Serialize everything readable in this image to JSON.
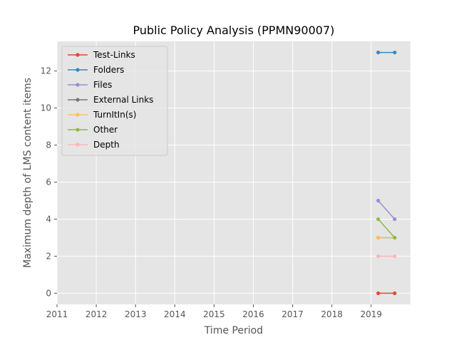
{
  "chart_data": {
    "type": "line",
    "title": "Public Policy Analysis (PPMN90007)",
    "xlabel": "Time Period",
    "ylabel": "Maximum depth of LMS content items",
    "xlim": [
      2011,
      2020.0
    ],
    "ylim": [
      -0.6,
      13.6
    ],
    "xticks": [
      "2011",
      "2012",
      "2013",
      "2014",
      "2015",
      "2016",
      "2017",
      "2018",
      "2019"
    ],
    "yticks": [
      "0",
      "2",
      "4",
      "6",
      "8",
      "10",
      "12"
    ],
    "grid": true,
    "legend_position": "upper-left",
    "x": [
      2019.18,
      2019.6
    ],
    "series": [
      {
        "name": "Test-Links",
        "color": "#E24A33",
        "values": [
          0,
          0
        ]
      },
      {
        "name": "Folders",
        "color": "#348ABD",
        "values": [
          13,
          13
        ]
      },
      {
        "name": "Files",
        "color": "#988ED5",
        "values": [
          5,
          4
        ]
      },
      {
        "name": "External Links",
        "color": "#777777",
        "values": [
          3,
          3
        ]
      },
      {
        "name": "TurnItIn(s)",
        "color": "#FBC15E",
        "values": [
          3,
          3
        ]
      },
      {
        "name": "Other",
        "color": "#8EBA42",
        "values": [
          4,
          3
        ]
      },
      {
        "name": "Depth",
        "color": "#FFB5B8",
        "values": [
          2,
          2
        ]
      }
    ]
  }
}
